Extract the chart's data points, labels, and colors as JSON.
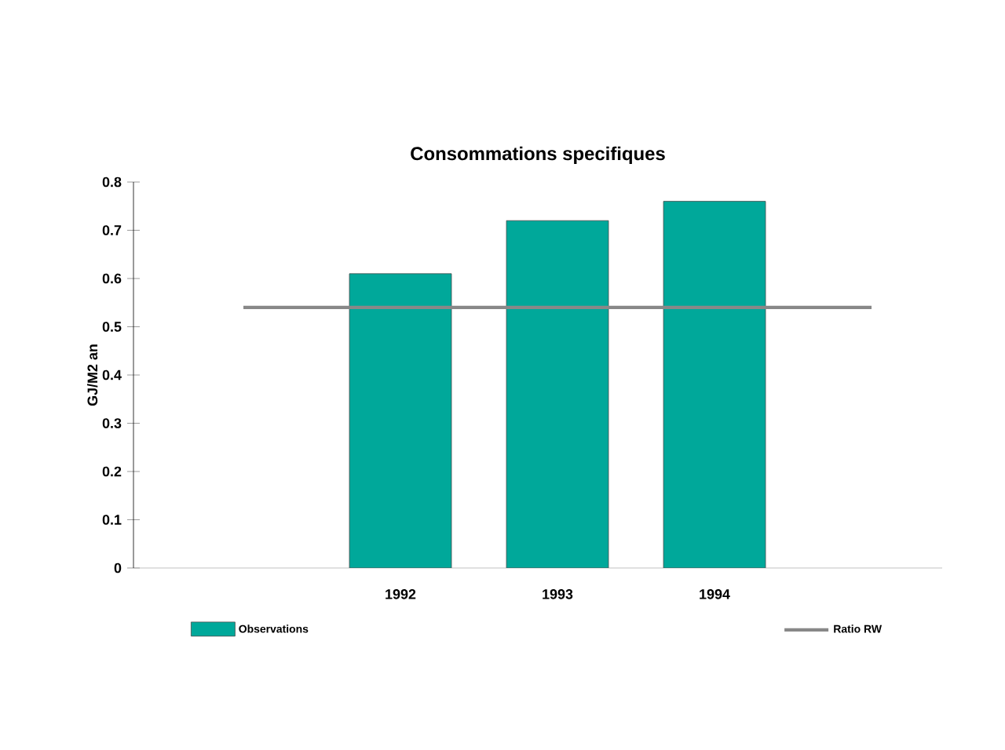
{
  "chart_data": {
    "type": "bar",
    "title": "Consommations specifiques",
    "ylabel": "GJ/M2 an",
    "categories": [
      null,
      "1992",
      "1993",
      "1994",
      null
    ],
    "series": [
      {
        "name": "Observations",
        "color": "#00a89a",
        "values": [
          null,
          0.61,
          0.72,
          0.76,
          null
        ]
      },
      {
        "name": "Ratio RW",
        "type": "line",
        "color": "#888888",
        "values": [
          0.54,
          0.54,
          0.54,
          0.54,
          0.54
        ]
      }
    ],
    "ylim": [
      0,
      0.8
    ],
    "yticks": [
      0,
      0.1,
      0.2,
      0.3,
      0.4,
      0.5,
      0.6,
      0.7,
      0.8
    ],
    "legend": "bottom"
  }
}
